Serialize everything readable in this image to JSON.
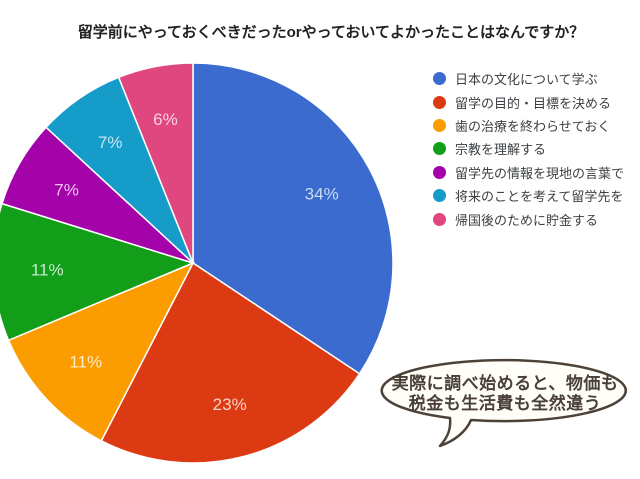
{
  "title": "留学前にやっておくべきだったorやっておいてよかったことはなんですか？",
  "chart_data": {
    "type": "pie",
    "title": "留学前にやっておくべきだったorやっておいてよかったことはなんですか？",
    "legend_position": "right",
    "start_angle_deg": 0,
    "direction": "clockwise",
    "categories": [
      "日本の文化について学ぶ",
      "留学の目的・目標を決める",
      "歯の治療を終わらせておく",
      "宗教を理解する",
      "留学先の情報を現地の言葉で",
      "将来のことを考えて留学先を",
      "帰国後のために貯金する"
    ],
    "values": [
      34,
      23,
      11,
      11,
      7,
      7,
      6
    ],
    "slices": [
      {
        "label": "日本の文化について学ぶ",
        "percent": 34,
        "display": "34%",
        "color": "#3b6bce",
        "label_color": "#c9dcf5"
      },
      {
        "label": "留学の目的・目標を決める",
        "percent": 23,
        "display": "23%",
        "color": "#dc3a12",
        "label_color": "#f8d2c6"
      },
      {
        "label": "歯の治療を終わらせておく",
        "percent": 11,
        "display": "11%",
        "color": "#fb9c00",
        "label_color": "#ffeccb"
      },
      {
        "label": "宗教を理解する",
        "percent": 11,
        "display": "11%",
        "color": "#129e19",
        "label_color": "#c9ead0"
      },
      {
        "label": "留学先の情報を現地の言葉で",
        "percent": 7,
        "display": "7%",
        "color": "#a303a8",
        "label_color": "#f0c4ef"
      },
      {
        "label": "将来のことを考えて留学先を",
        "percent": 7,
        "display": "7%",
        "color": "#169cc9",
        "label_color": "#c8e7f2"
      },
      {
        "label": "帰国後のために貯金する",
        "percent": 6,
        "display": "6%",
        "color": "#e0477e",
        "label_color": "#f9d2de"
      }
    ]
  },
  "annotation": {
    "line1": "実際に調べ始めると、物価も",
    "line2": "税金も生活費も全然違う"
  }
}
